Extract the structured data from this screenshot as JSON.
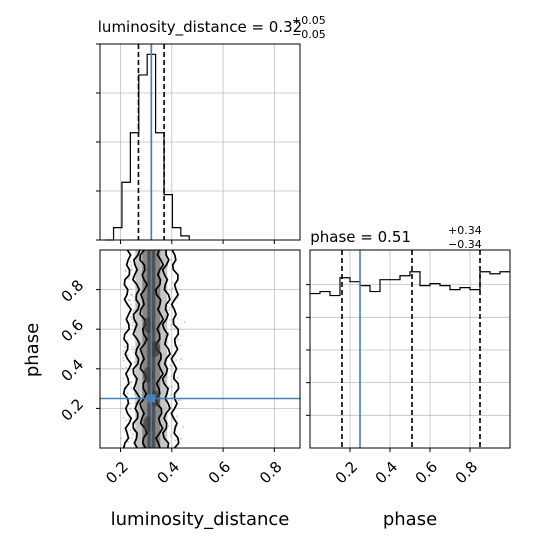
{
  "chart_data": [
    {
      "type": "histogram",
      "panel": "luminosity_distance marginal",
      "title_main": "luminosity_distance = 0.32",
      "title_plus": "+0.05",
      "title_minus": "−0.05",
      "xlim": [
        0.12,
        0.9
      ],
      "bins": [
        0.14,
        0.1728,
        0.2056,
        0.2384,
        0.2712,
        0.304,
        0.3368,
        0.3696,
        0.4024,
        0.4352,
        0.468
      ],
      "counts": [
        0,
        0.06,
        0.28,
        0.52,
        0.8,
        0.9,
        0.52,
        0.22,
        0.06,
        0.02
      ],
      "ymax": 0.95,
      "quantiles": [
        0.27,
        0.32,
        0.37
      ],
      "truth": 0.32
    },
    {
      "type": "histogram",
      "panel": "phase marginal",
      "title_main": "phase = 0.51",
      "title_plus": "+0.34",
      "title_minus": "−0.34",
      "xlim": [
        0.0,
        1.0
      ],
      "bins": [
        0.0,
        0.05,
        0.1,
        0.15,
        0.2,
        0.25,
        0.3,
        0.35,
        0.4,
        0.45,
        0.5,
        0.55,
        0.6,
        0.65,
        0.7,
        0.75,
        0.8,
        0.85,
        0.9,
        0.95,
        1.0
      ],
      "counts": [
        0.78,
        0.79,
        0.77,
        0.86,
        0.84,
        0.82,
        0.79,
        0.85,
        0.85,
        0.87,
        0.89,
        0.82,
        0.83,
        0.82,
        0.8,
        0.81,
        0.8,
        0.89,
        0.88,
        0.89
      ],
      "ymax": 1.0,
      "quantiles": [
        0.16,
        0.51,
        0.85
      ],
      "truth": 0.25
    },
    {
      "type": "scatter",
      "panel": "2D posterior",
      "xlabel": "luminosity_distance",
      "ylabel": "phase",
      "xlim": [
        0.12,
        0.9
      ],
      "ylim": [
        0.0,
        1.0
      ],
      "xticks": [
        "0.2",
        "0.4",
        "0.6",
        "0.8"
      ],
      "xtick_values": [
        0.2,
        0.4,
        0.6,
        0.8
      ],
      "yticks": [
        "0.2",
        "0.4",
        "0.6",
        "0.8"
      ],
      "ytick_values": [
        0.2,
        0.4,
        0.6,
        0.8
      ],
      "truth": {
        "x": 0.32,
        "y": 0.25
      },
      "point_center_x": 0.32,
      "point_spread_x": 0.05
    }
  ],
  "phase_xlabel": "phase",
  "phase_xticks": [
    "0.2",
    "0.4",
    "0.6",
    "0.8"
  ],
  "phase_xtick_values": [
    0.2,
    0.4,
    0.6,
    0.8
  ],
  "colors": {
    "truth": "#4682b4",
    "hist": "#000000",
    "grid": "#bfbfbf",
    "points": "#9a9a9a"
  }
}
